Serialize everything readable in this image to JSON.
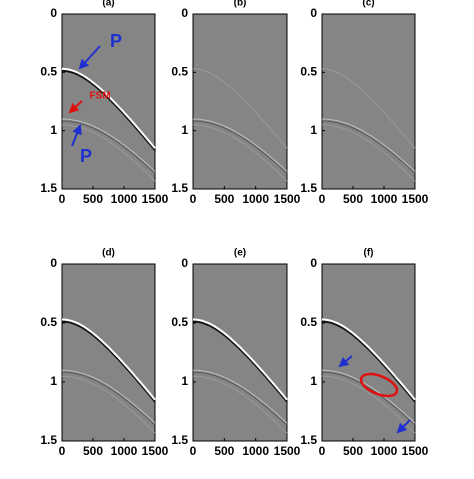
{
  "chart_data": [
    {
      "type": "seismic",
      "title": "(a)",
      "xlim": [
        0,
        1500
      ],
      "ylim": [
        0,
        1.5
      ],
      "xticks": [
        0,
        500,
        1000,
        1500
      ],
      "yticks": [
        0,
        0.5,
        1,
        1.5
      ],
      "annotations": [
        "P",
        "FSM",
        "P"
      ]
    },
    {
      "type": "seismic",
      "title": "(b)",
      "xlim": [
        0,
        1500
      ],
      "ylim": [
        0,
        1.5
      ],
      "xticks": [
        0,
        500,
        1000,
        1500
      ],
      "yticks": [
        0,
        0.5,
        1,
        1.5
      ]
    },
    {
      "type": "seismic",
      "title": "(c)",
      "xlim": [
        0,
        1500
      ],
      "ylim": [
        0,
        1.5
      ],
      "xticks": [
        0,
        500,
        1000,
        1500
      ],
      "yticks": [
        0,
        0.5,
        1,
        1.5
      ]
    },
    {
      "type": "seismic",
      "title": "(d)",
      "xlim": [
        0,
        1500
      ],
      "ylim": [
        0,
        1.5
      ],
      "xticks": [
        0,
        500,
        1000,
        1500
      ],
      "yticks": [
        0,
        0.5,
        1,
        1.5
      ]
    },
    {
      "type": "seismic",
      "title": "(e)",
      "xlim": [
        0,
        1500
      ],
      "ylim": [
        0,
        1.5
      ],
      "xticks": [
        0,
        500,
        1000,
        1500
      ],
      "yticks": [
        0,
        0.5,
        1,
        1.5
      ]
    },
    {
      "type": "seismic",
      "title": "(f)",
      "xlim": [
        0,
        1500
      ],
      "ylim": [
        0,
        1.5
      ],
      "xticks": [
        0,
        500,
        1000,
        1500
      ],
      "yticks": [
        0,
        0.5,
        1,
        1.5
      ]
    }
  ]
}
